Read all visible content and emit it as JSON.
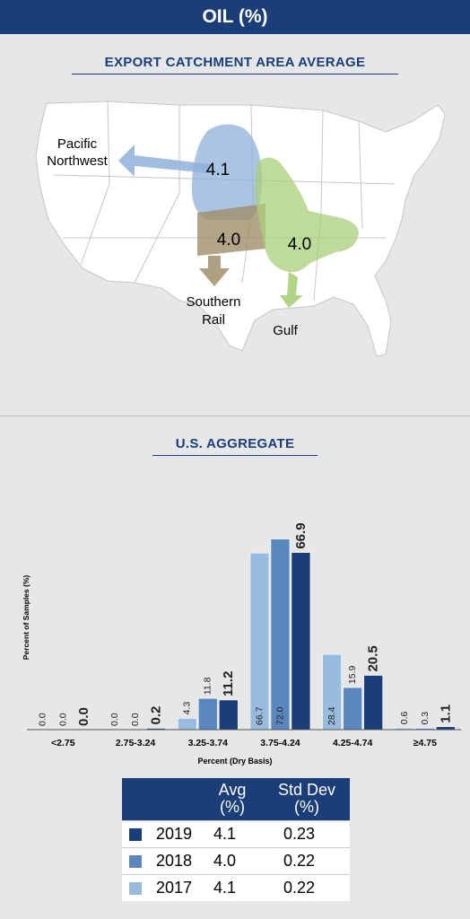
{
  "header": {
    "title": "OIL (%)"
  },
  "map": {
    "title": "EXPORT CATCHMENT AREA AVERAGE",
    "regions": [
      {
        "name": "Pacific Northwest",
        "label_line1": "Pacific",
        "label_line2": "Northwest",
        "value": "4.1",
        "color": "#8fb0d9"
      },
      {
        "name": "Southern Rail",
        "label_line1": "Southern",
        "label_line2": "Rail",
        "value": "4.0",
        "color": "#a08f6a"
      },
      {
        "name": "Gulf",
        "label_line1": "Gulf",
        "label_line2": "",
        "value": "4.0",
        "color": "#a9cf7a"
      }
    ]
  },
  "chart_data": {
    "type": "bar",
    "title": "U.S. AGGREGATE",
    "xlabel": "Percent (Dry Basis)",
    "ylabel": "Percent of Samples (%)",
    "categories": [
      "<2.75",
      "2.75-3.24",
      "3.25-3.74",
      "3.75-4.24",
      "4.25-4.74",
      "≥4.75"
    ],
    "ylim": [
      0,
      80
    ],
    "series": [
      {
        "name": "2017",
        "color": "#99bbde",
        "values": [
          0.0,
          0.0,
          4.3,
          66.7,
          28.4,
          0.6
        ],
        "labels": [
          "0.0",
          "0.0",
          "4.3",
          "66.7",
          "28.4",
          "0.6"
        ]
      },
      {
        "name": "2018",
        "color": "#5b87bf",
        "values": [
          0.0,
          0.0,
          11.8,
          72.0,
          15.9,
          0.3
        ],
        "labels": [
          "0.0",
          "0.0",
          "11.8",
          "72.0",
          "15.9",
          "0.3"
        ]
      },
      {
        "name": "2019",
        "color": "#1b3d78",
        "values": [
          0.0,
          0.2,
          11.2,
          66.9,
          20.5,
          1.1
        ],
        "labels": [
          "0.0",
          "0.2",
          "11.2",
          "66.9",
          "20.5",
          "1.1"
        ]
      }
    ]
  },
  "legend": {
    "headers": {
      "avg": "Avg\n(%)",
      "std": "Std Dev\n(%)"
    },
    "rows": [
      {
        "year": "2019",
        "avg": "4.1",
        "std": "0.23",
        "color": "#1b3d78"
      },
      {
        "year": "2018",
        "avg": "4.0",
        "std": "0.22",
        "color": "#5b87bf"
      },
      {
        "year": "2017",
        "avg": "4.1",
        "std": "0.22",
        "color": "#99bbde"
      }
    ]
  }
}
